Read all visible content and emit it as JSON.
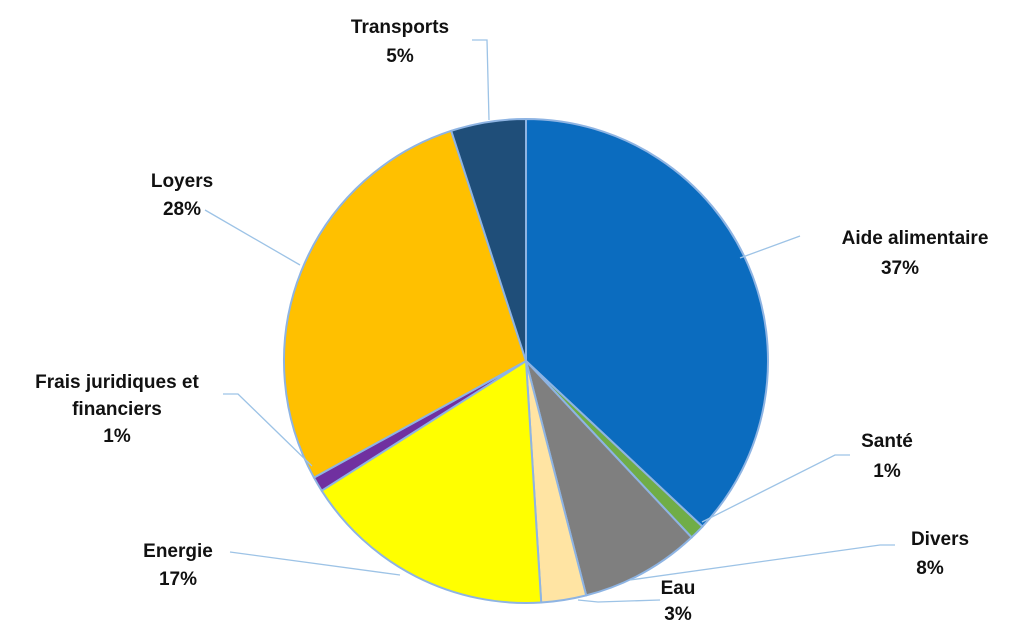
{
  "chart_data": {
    "type": "pie",
    "title": "",
    "legend": "none",
    "slices": [
      {
        "label": "Aide alimentaire",
        "pct_text": "37%",
        "value": 37,
        "color": "#0b6cbf"
      },
      {
        "label": "Santé",
        "pct_text": "1%",
        "value": 1,
        "color": "#70ad47"
      },
      {
        "label": "Divers",
        "pct_text": "8%",
        "value": 8,
        "color": "#7f7f7f"
      },
      {
        "label": "Eau",
        "pct_text": "3%",
        "value": 3,
        "color": "#ffe4a3"
      },
      {
        "label": "Energie",
        "pct_text": "17%",
        "value": 17,
        "color": "#ffff00"
      },
      {
        "label": "Frais juridiques et financiers",
        "label_lines": [
          "Frais juridiques et",
          "financiers"
        ],
        "pct_text": "1%",
        "value": 1,
        "color": "#7030a0"
      },
      {
        "label": "Loyers",
        "pct_text": "28%",
        "value": 28,
        "color": "#ffc000"
      },
      {
        "label": "Transports",
        "pct_text": "5%",
        "value": 5,
        "color": "#1f4e79"
      }
    ]
  }
}
